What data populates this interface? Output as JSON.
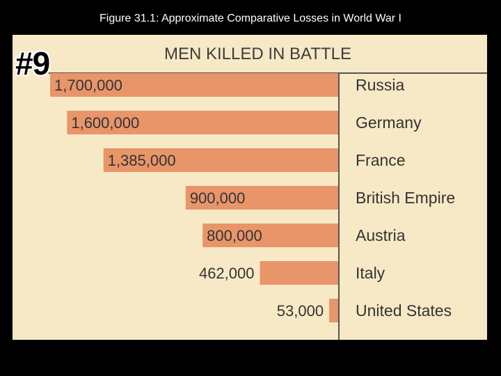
{
  "slide_title": "Figure 31.1: Approximate Comparative Losses in World War I",
  "badge": "#9",
  "chart_data": {
    "type": "bar",
    "orientation": "horizontal",
    "title": "MEN KILLED IN BATTLE",
    "categories": [
      "Russia",
      "Germany",
      "France",
      "British Empire",
      "Austria",
      "Italy",
      "United States"
    ],
    "values": [
      1700000,
      1600000,
      1385000,
      900000,
      800000,
      462000,
      53000
    ],
    "value_labels": [
      "1,700,000",
      "1,600,000",
      "1,385,000",
      "900,000",
      "800,000",
      "462,000",
      "53,000"
    ],
    "xlim": [
      0,
      1700000
    ],
    "grid": false,
    "legend": "none"
  },
  "colors": {
    "bar": "#e8956a",
    "panel_bg": "#f8e9c6",
    "text": "#333333",
    "slide_bg": "#000000"
  }
}
